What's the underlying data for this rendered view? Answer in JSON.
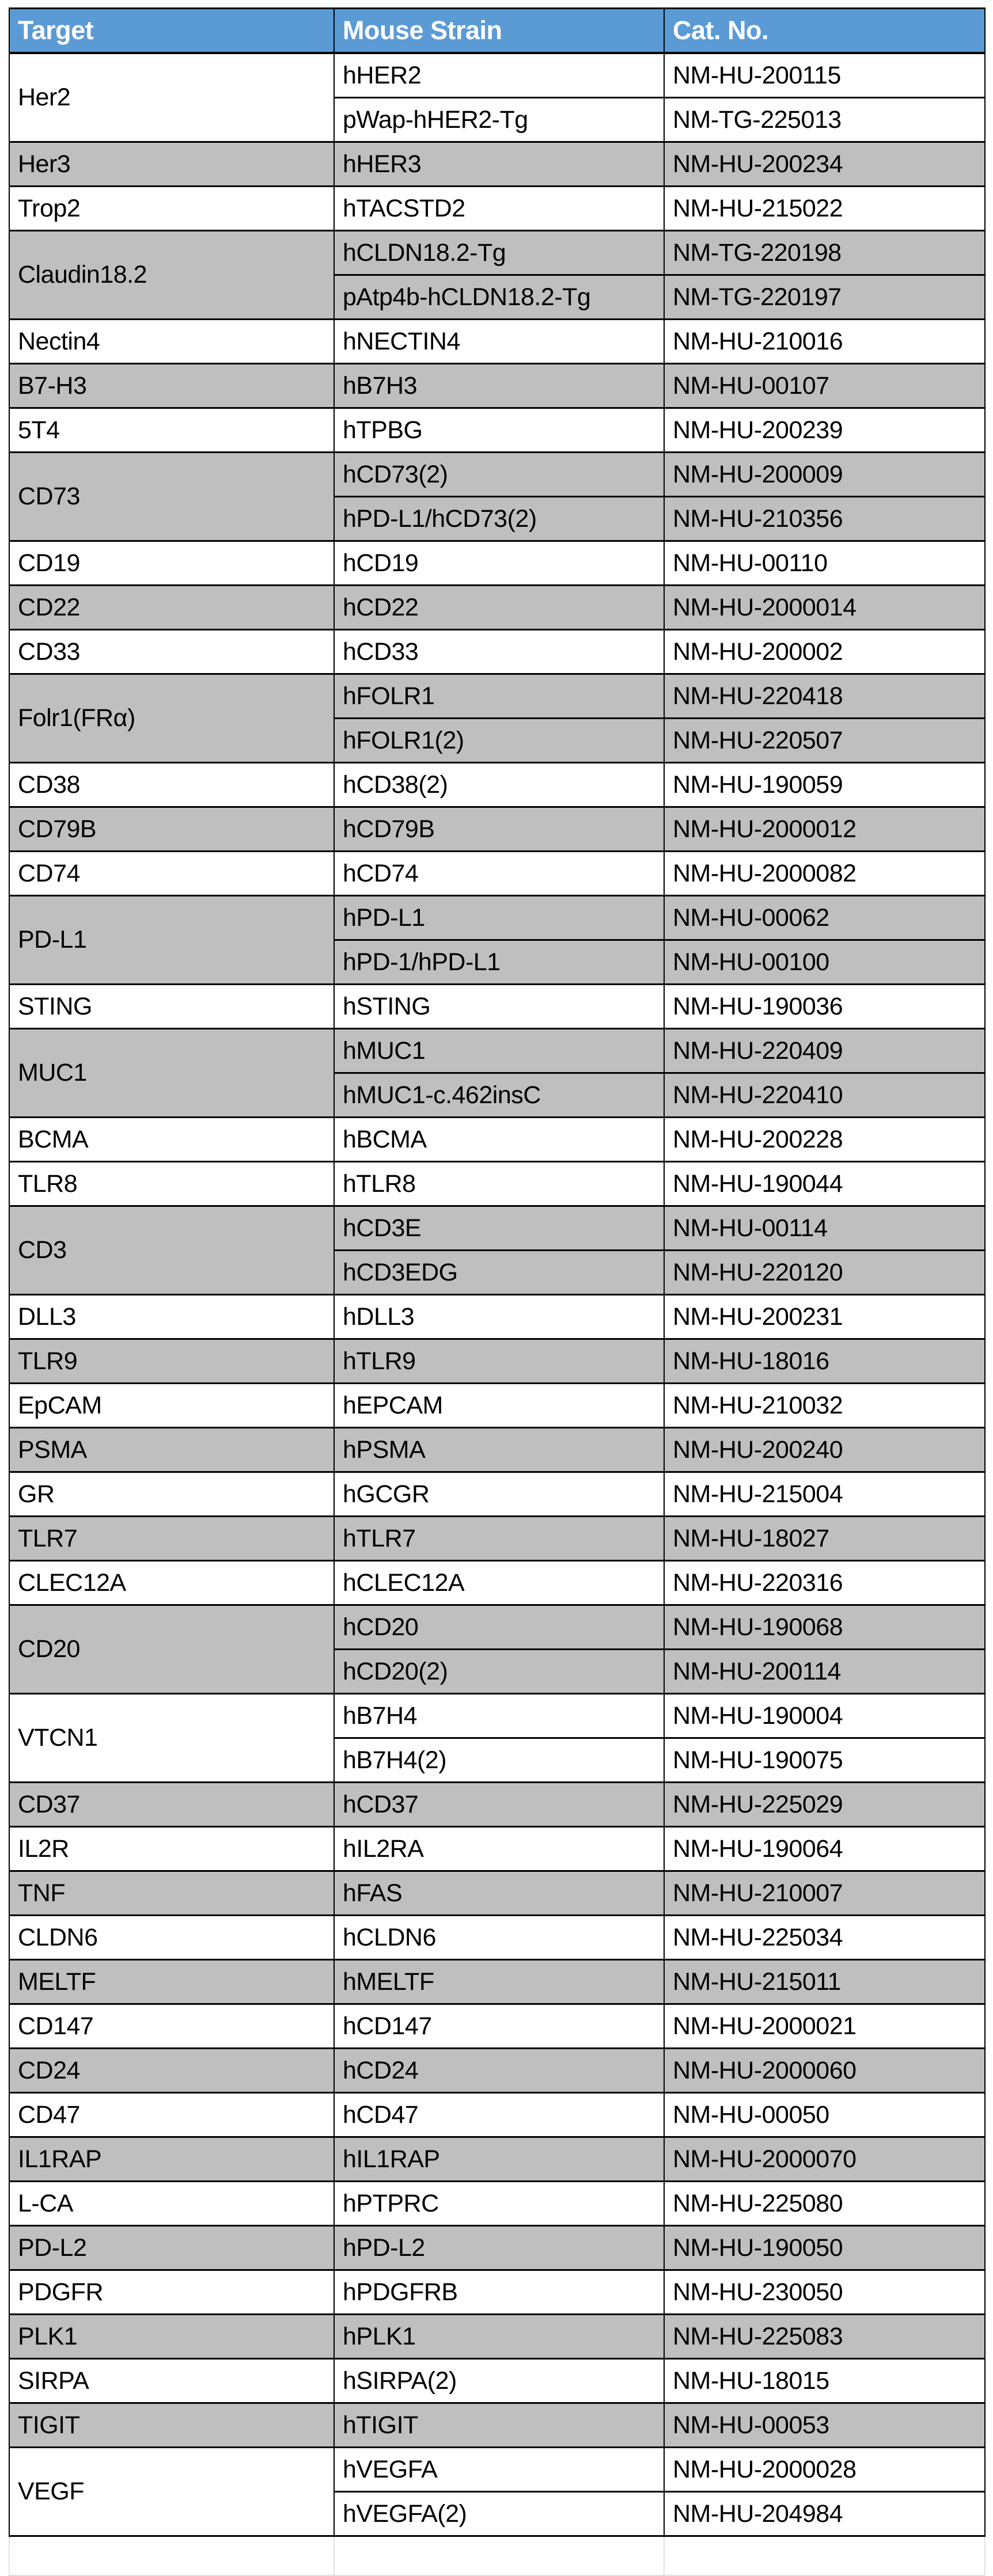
{
  "table": {
    "headers": [
      "Target",
      "Mouse Strain",
      "Cat. No."
    ],
    "colors": {
      "header_bg": "#5b9bd5",
      "header_text": "#ffffff",
      "row_white": "#ffffff",
      "row_gray": "#bfbfbf",
      "border_dark": "#000000",
      "border_light": "#e0e0e0",
      "text": "#000000"
    },
    "has_trailing_empty_row": true,
    "groups": [
      {
        "target": "Her2",
        "shade": "white",
        "rows": [
          {
            "strain": "hHER2",
            "cat": "NM-HU-200115"
          },
          {
            "strain": "pWap-hHER2-Tg",
            "cat": "NM-TG-225013"
          }
        ]
      },
      {
        "target": "Her3",
        "shade": "gray",
        "rows": [
          {
            "strain": "hHER3",
            "cat": "NM-HU-200234"
          }
        ]
      },
      {
        "target": "Trop2",
        "shade": "white",
        "rows": [
          {
            "strain": "hTACSTD2",
            "cat": "NM-HU-215022"
          }
        ]
      },
      {
        "target": "Claudin18.2",
        "shade": "gray",
        "rows": [
          {
            "strain": "hCLDN18.2-Tg",
            "cat": "NM-TG-220198"
          },
          {
            "strain": "pAtp4b-hCLDN18.2-Tg",
            "cat": "NM-TG-220197"
          }
        ]
      },
      {
        "target": "Nectin4",
        "shade": "white",
        "rows": [
          {
            "strain": "hNECTIN4",
            "cat": "NM-HU-210016"
          }
        ]
      },
      {
        "target": "B7-H3",
        "shade": "gray",
        "rows": [
          {
            "strain": "hB7H3",
            "cat": "NM-HU-00107"
          }
        ]
      },
      {
        "target": "5T4",
        "shade": "white",
        "rows": [
          {
            "strain": "hTPBG",
            "cat": "NM-HU-200239"
          }
        ]
      },
      {
        "target": "CD73",
        "shade": "gray",
        "rows": [
          {
            "strain": "hCD73(2)",
            "cat": "NM-HU-200009"
          },
          {
            "strain": "hPD-L1/hCD73(2)",
            "cat": "NM-HU-210356"
          }
        ]
      },
      {
        "target": "CD19",
        "shade": "white",
        "rows": [
          {
            "strain": "hCD19",
            "cat": "NM-HU-00110"
          }
        ]
      },
      {
        "target": "CD22",
        "shade": "gray",
        "rows": [
          {
            "strain": "hCD22",
            "cat": "NM-HU-2000014"
          }
        ]
      },
      {
        "target": "CD33",
        "shade": "white",
        "rows": [
          {
            "strain": "hCD33",
            "cat": "NM-HU-200002"
          }
        ]
      },
      {
        "target": "Folr1(FRα)",
        "shade": "gray",
        "rows": [
          {
            "strain": "hFOLR1",
            "cat": "NM-HU-220418"
          },
          {
            "strain": "hFOLR1(2)",
            "cat": "NM-HU-220507"
          }
        ]
      },
      {
        "target": "CD38",
        "shade": "white",
        "rows": [
          {
            "strain": "hCD38(2)",
            "cat": "NM-HU-190059"
          }
        ]
      },
      {
        "target": "CD79B",
        "shade": "gray",
        "rows": [
          {
            "strain": "hCD79B",
            "cat": "NM-HU-2000012"
          }
        ]
      },
      {
        "target": "CD74",
        "shade": "white",
        "rows": [
          {
            "strain": "hCD74",
            "cat": "NM-HU-2000082"
          }
        ]
      },
      {
        "target": "PD-L1",
        "shade": "gray",
        "rows": [
          {
            "strain": "hPD-L1",
            "cat": "NM-HU-00062"
          },
          {
            "strain": "hPD-1/hPD-L1",
            "cat": "NM-HU-00100"
          }
        ]
      },
      {
        "target": "STING",
        "shade": "white",
        "rows": [
          {
            "strain": "hSTING",
            "cat": "NM-HU-190036"
          }
        ]
      },
      {
        "target": "MUC1",
        "shade": "gray",
        "rows": [
          {
            "strain": "hMUC1",
            "cat": "NM-HU-220409"
          },
          {
            "strain": "hMUC1-c.462insC",
            "cat": "NM-HU-220410"
          }
        ]
      },
      {
        "target": "BCMA",
        "shade": "white",
        "rows": [
          {
            "strain": "hBCMA",
            "cat": "NM-HU-200228"
          }
        ]
      },
      {
        "target": "TLR8",
        "shade": "white",
        "rows": [
          {
            "strain": "hTLR8",
            "cat": "NM-HU-190044"
          }
        ]
      },
      {
        "target": "CD3",
        "shade": "gray",
        "rows": [
          {
            "strain": "hCD3E",
            "cat": "NM-HU-00114"
          },
          {
            "strain": "hCD3EDG",
            "cat": "NM-HU-220120"
          }
        ]
      },
      {
        "target": "DLL3",
        "shade": "white",
        "rows": [
          {
            "strain": "hDLL3",
            "cat": "NM-HU-200231"
          }
        ]
      },
      {
        "target": "TLR9",
        "shade": "gray",
        "rows": [
          {
            "strain": "hTLR9",
            "cat": "NM-HU-18016"
          }
        ]
      },
      {
        "target": "EpCAM",
        "shade": "white",
        "rows": [
          {
            "strain": "hEPCAM",
            "cat": "NM-HU-210032"
          }
        ]
      },
      {
        "target": "PSMA",
        "shade": "gray",
        "rows": [
          {
            "strain": "hPSMA",
            "cat": "NM-HU-200240"
          }
        ]
      },
      {
        "target": "GR",
        "shade": "white",
        "rows": [
          {
            "strain": "hGCGR",
            "cat": "NM-HU-215004"
          }
        ]
      },
      {
        "target": "TLR7",
        "shade": "gray",
        "rows": [
          {
            "strain": "hTLR7",
            "cat": "NM-HU-18027"
          }
        ]
      },
      {
        "target": "CLEC12A",
        "shade": "white",
        "rows": [
          {
            "strain": "hCLEC12A",
            "cat": "NM-HU-220316"
          }
        ]
      },
      {
        "target": "CD20",
        "shade": "gray",
        "rows": [
          {
            "strain": "hCD20",
            "cat": "NM-HU-190068"
          },
          {
            "strain": "hCD20(2)",
            "cat": "NM-HU-200114"
          }
        ]
      },
      {
        "target": "VTCN1",
        "shade": "white",
        "rows": [
          {
            "strain": "hB7H4",
            "cat": "NM-HU-190004"
          },
          {
            "strain": "hB7H4(2)",
            "cat": "NM-HU-190075"
          }
        ]
      },
      {
        "target": "CD37",
        "shade": "gray",
        "rows": [
          {
            "strain": "hCD37",
            "cat": "NM-HU-225029"
          }
        ]
      },
      {
        "target": "IL2R",
        "shade": "white",
        "rows": [
          {
            "strain": "hIL2RA",
            "cat": "NM-HU-190064"
          }
        ]
      },
      {
        "target": "TNF",
        "shade": "gray",
        "rows": [
          {
            "strain": "hFAS",
            "cat": "NM-HU-210007"
          }
        ]
      },
      {
        "target": "CLDN6",
        "shade": "white",
        "rows": [
          {
            "strain": "hCLDN6",
            "cat": "NM-HU-225034"
          }
        ]
      },
      {
        "target": "MELTF",
        "shade": "gray",
        "rows": [
          {
            "strain": "hMELTF",
            "cat": "NM-HU-215011"
          }
        ]
      },
      {
        "target": "CD147",
        "shade": "white",
        "rows": [
          {
            "strain": "hCD147",
            "cat": "NM-HU-2000021"
          }
        ]
      },
      {
        "target": "CD24",
        "shade": "gray",
        "rows": [
          {
            "strain": "hCD24",
            "cat": "NM-HU-2000060"
          }
        ]
      },
      {
        "target": "CD47",
        "shade": "white",
        "rows": [
          {
            "strain": "hCD47",
            "cat": "NM-HU-00050"
          }
        ]
      },
      {
        "target": "IL1RAP",
        "shade": "gray",
        "rows": [
          {
            "strain": "hIL1RAP",
            "cat": "NM-HU-2000070"
          }
        ]
      },
      {
        "target": "L-CA",
        "shade": "white",
        "rows": [
          {
            "strain": "hPTPRC",
            "cat": "NM-HU-225080"
          }
        ]
      },
      {
        "target": "PD-L2",
        "shade": "gray",
        "rows": [
          {
            "strain": "hPD-L2",
            "cat": "NM-HU-190050"
          }
        ]
      },
      {
        "target": "PDGFR",
        "shade": "white",
        "rows": [
          {
            "strain": "hPDGFRB",
            "cat": "NM-HU-230050"
          }
        ]
      },
      {
        "target": "PLK1",
        "shade": "gray",
        "rows": [
          {
            "strain": "hPLK1",
            "cat": "NM-HU-225083"
          }
        ]
      },
      {
        "target": "SIRPA",
        "shade": "white",
        "rows": [
          {
            "strain": "hSIRPA(2)",
            "cat": "NM-HU-18015"
          }
        ]
      },
      {
        "target": "TIGIT",
        "shade": "gray",
        "rows": [
          {
            "strain": "hTIGIT",
            "cat": "NM-HU-00053"
          }
        ]
      },
      {
        "target": "VEGF",
        "shade": "white",
        "rows": [
          {
            "strain": "hVEGFA",
            "cat": "NM-HU-2000028"
          },
          {
            "strain": "hVEGFA(2)",
            "cat": "NM-HU-204984"
          }
        ]
      }
    ]
  }
}
